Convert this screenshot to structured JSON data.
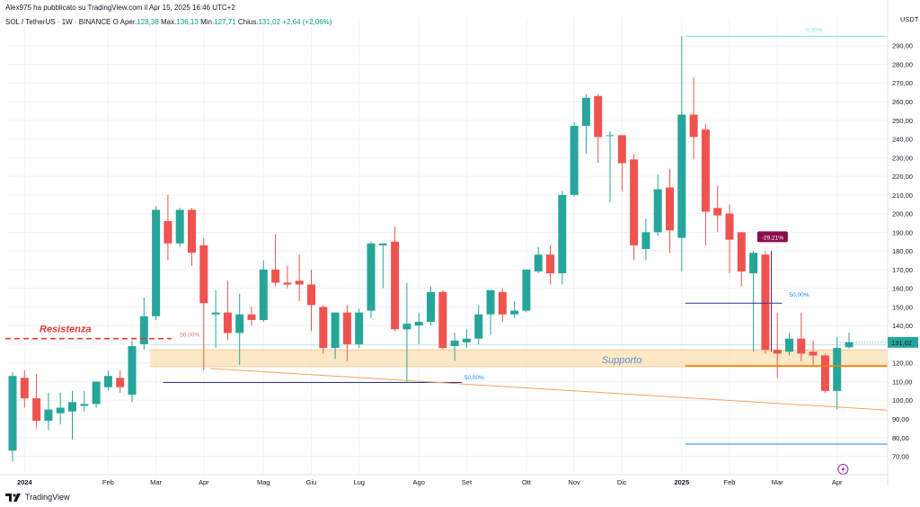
{
  "header": {
    "publisher": "Alex975 ha pubblicato su TradingView.com il Apr 15, 2025 16:46 UTC+2",
    "symbol": "SOL / TetherUS · 1W · BINANCE",
    "open_label": "O",
    "open_text": "Aper.",
    "open_value": "128,38",
    "high_text": "Max.",
    "high_value": "136,13",
    "low_text": "Min.",
    "low_value": "127,71",
    "close_text": "Chius.",
    "close_value": "131,02",
    "change": "+2,64 (+2,06%)"
  },
  "currency": "USDT",
  "footer": {
    "brand": "TradingView"
  },
  "chart_data": {
    "type": "candlestick",
    "currency": "USDT",
    "ylim": [
      64,
      299
    ],
    "yticks": [
      "290,00",
      "280,00",
      "270,00",
      "260,00",
      "250,00",
      "240,00",
      "230,00",
      "220,00",
      "210,00",
      "200,00",
      "190,00",
      "180,00",
      "170,00",
      "160,00",
      "150,00",
      "140,00",
      "130,00",
      "120,00",
      "110,00",
      "100,00",
      "90,00",
      "80,00",
      "70,00"
    ],
    "ytick_values": [
      290,
      280,
      270,
      260,
      250,
      240,
      230,
      220,
      210,
      200,
      190,
      180,
      170,
      160,
      150,
      140,
      130,
      120,
      110,
      100,
      90,
      80,
      70
    ],
    "xticks": [
      "2024",
      "Feb",
      "Mar",
      "Apr",
      "Mag",
      "Giu",
      "Lug",
      "Ago",
      "Set",
      "Ott",
      "Nov",
      "Dic",
      "2025",
      "Feb",
      "Mar",
      "Apr"
    ],
    "xtick_index": [
      1,
      8,
      12,
      16,
      21,
      25,
      29,
      34,
      38,
      43,
      47,
      51,
      56,
      60,
      64,
      69
    ],
    "last_price": "131,02",
    "last_price_value": 131.02,
    "up_color": "#26a69a",
    "down_color": "#ef5350",
    "candles": [
      {
        "o": 73,
        "h": 115,
        "l": 67,
        "c": 113
      },
      {
        "o": 112,
        "h": 116,
        "l": 96,
        "c": 101
      },
      {
        "o": 101,
        "h": 114,
        "l": 85,
        "c": 89
      },
      {
        "o": 89,
        "h": 104,
        "l": 84,
        "c": 95
      },
      {
        "o": 93,
        "h": 104,
        "l": 87,
        "c": 96
      },
      {
        "o": 94,
        "h": 105,
        "l": 79,
        "c": 99
      },
      {
        "o": 97,
        "h": 105,
        "l": 94,
        "c": 98
      },
      {
        "o": 98,
        "h": 110,
        "l": 96,
        "c": 110
      },
      {
        "o": 107,
        "h": 116,
        "l": 105,
        "c": 113
      },
      {
        "o": 112,
        "h": 116,
        "l": 104,
        "c": 107
      },
      {
        "o": 103,
        "h": 132,
        "l": 99,
        "c": 129
      },
      {
        "o": 130,
        "h": 155,
        "l": 127,
        "c": 145
      },
      {
        "o": 145,
        "h": 204,
        "l": 143,
        "c": 202
      },
      {
        "o": 196,
        "h": 210,
        "l": 175,
        "c": 184
      },
      {
        "o": 184,
        "h": 203,
        "l": 182,
        "c": 202
      },
      {
        "o": 202,
        "h": 203,
        "l": 172,
        "c": 179
      },
      {
        "o": 183,
        "h": 187,
        "l": 116,
        "c": 152
      },
      {
        "o": 146,
        "h": 159,
        "l": 128,
        "c": 147
      },
      {
        "o": 147,
        "h": 164,
        "l": 132,
        "c": 136
      },
      {
        "o": 136,
        "h": 157,
        "l": 119,
        "c": 146
      },
      {
        "o": 146,
        "h": 150,
        "l": 140,
        "c": 143
      },
      {
        "o": 143,
        "h": 175,
        "l": 142,
        "c": 170
      },
      {
        "o": 170,
        "h": 189,
        "l": 161,
        "c": 163
      },
      {
        "o": 163,
        "h": 172,
        "l": 160,
        "c": 162
      },
      {
        "o": 164,
        "h": 178,
        "l": 153,
        "c": 162
      },
      {
        "o": 162,
        "h": 170,
        "l": 137,
        "c": 151
      },
      {
        "o": 150,
        "h": 151,
        "l": 125,
        "c": 128
      },
      {
        "o": 128,
        "h": 146,
        "l": 122,
        "c": 147
      },
      {
        "o": 147,
        "h": 151,
        "l": 121,
        "c": 130
      },
      {
        "o": 130,
        "h": 149,
        "l": 128,
        "c": 147
      },
      {
        "o": 148,
        "h": 185,
        "l": 144,
        "c": 184
      },
      {
        "o": 183,
        "h": 184,
        "l": 160,
        "c": 184
      },
      {
        "o": 185,
        "h": 193,
        "l": 137,
        "c": 138
      },
      {
        "o": 138,
        "h": 163,
        "l": 110,
        "c": 141
      },
      {
        "o": 140,
        "h": 147,
        "l": 130,
        "c": 142
      },
      {
        "o": 142,
        "h": 161,
        "l": 140,
        "c": 158
      },
      {
        "o": 158,
        "h": 159,
        "l": 127,
        "c": 128
      },
      {
        "o": 129,
        "h": 136,
        "l": 121,
        "c": 132
      },
      {
        "o": 131,
        "h": 138,
        "l": 128,
        "c": 133
      },
      {
        "o": 133,
        "h": 151,
        "l": 130,
        "c": 146
      },
      {
        "o": 146,
        "h": 159,
        "l": 135,
        "c": 159
      },
      {
        "o": 158,
        "h": 160,
        "l": 142,
        "c": 146
      },
      {
        "o": 146,
        "h": 153,
        "l": 144,
        "c": 148
      },
      {
        "o": 148,
        "h": 170,
        "l": 147,
        "c": 170
      },
      {
        "o": 169,
        "h": 182,
        "l": 168,
        "c": 178
      },
      {
        "o": 178,
        "h": 183,
        "l": 162,
        "c": 168
      },
      {
        "o": 168,
        "h": 212,
        "l": 162,
        "c": 210
      },
      {
        "o": 210,
        "h": 249,
        "l": 209,
        "c": 247
      },
      {
        "o": 247,
        "h": 264,
        "l": 232,
        "c": 262
      },
      {
        "o": 263,
        "h": 264,
        "l": 227,
        "c": 241
      },
      {
        "o": 242,
        "h": 244,
        "l": 206,
        "c": 242
      },
      {
        "o": 242,
        "h": 242,
        "l": 212,
        "c": 227
      },
      {
        "o": 229,
        "h": 232,
        "l": 175,
        "c": 183
      },
      {
        "o": 181,
        "h": 197,
        "l": 175,
        "c": 190
      },
      {
        "o": 190,
        "h": 221,
        "l": 188,
        "c": 213
      },
      {
        "o": 214,
        "h": 224,
        "l": 179,
        "c": 191
      },
      {
        "o": 187,
        "h": 295,
        "l": 169,
        "c": 253
      },
      {
        "o": 253,
        "h": 273,
        "l": 229,
        "c": 241
      },
      {
        "o": 245,
        "h": 248,
        "l": 183,
        "c": 201
      },
      {
        "o": 203,
        "h": 215,
        "l": 190,
        "c": 199
      },
      {
        "o": 200,
        "h": 205,
        "l": 168,
        "c": 186
      },
      {
        "o": 190,
        "h": 190,
        "l": 161,
        "c": 169
      },
      {
        "o": 168,
        "h": 180,
        "l": 126,
        "c": 179
      },
      {
        "o": 178,
        "h": 180,
        "l": 125,
        "c": 127
      },
      {
        "o": 127,
        "h": 147,
        "l": 112,
        "c": 125
      },
      {
        "o": 126,
        "h": 136,
        "l": 124,
        "c": 133
      },
      {
        "o": 133,
        "h": 147,
        "l": 121,
        "c": 125
      },
      {
        "o": 126,
        "h": 132,
        "l": 119,
        "c": 124
      },
      {
        "o": 124,
        "h": 125,
        "l": 104,
        "c": 105
      },
      {
        "o": 105,
        "h": 134,
        "l": 95,
        "c": 128
      },
      {
        "o": 128.38,
        "h": 136.13,
        "l": 127.71,
        "c": 131.02
      }
    ],
    "annotations": {
      "resistance_label": "Resistenza",
      "support_label": "Supporto",
      "fib_top_label": "0,00%",
      "fib_mid_label": "50,00%",
      "mid_left_label": "50,00%",
      "mid_aug_label": "50,00%",
      "drop_label": "-29,21%"
    }
  }
}
